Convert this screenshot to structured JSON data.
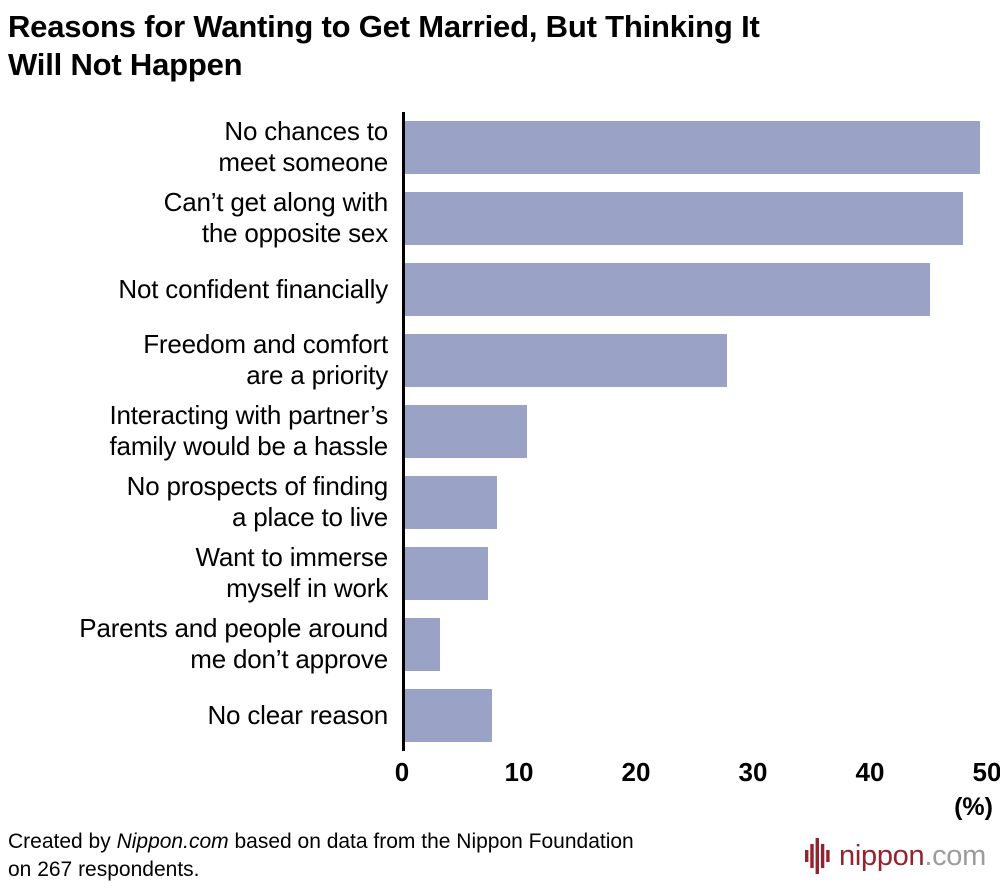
{
  "chart_data": {
    "type": "bar",
    "orientation": "horizontal",
    "title": "Reasons for Wanting to Get Married, But Thinking It Will Not Happen",
    "title_display": "Reasons for Wanting to Get Married, But Thinking It\nWill Not Happen",
    "categories": [
      "No chances to meet someone",
      "Can’t get along with the opposite sex",
      "Not confident financially",
      "Freedom and comfort are a priority",
      "Interacting with partner’s family would be a hassle",
      "No prospects of finding a place to live",
      "Want to immerse myself in work",
      "Parents and people around me don’t approve",
      "No clear reason"
    ],
    "categories_display": [
      "No chances to\nmeet someone",
      "Can’t get along with\nthe opposite sex",
      "Not confident financially",
      "Freedom and comfort\nare a priority",
      "Interacting with partner’s\nfamily would be a hassle",
      "No prospects of finding\na place to live",
      "Want to immerse\nmyself in work",
      "Parents and people around\nme don’t approve",
      "No clear reason"
    ],
    "values": [
      49.4,
      47.9,
      45.1,
      27.7,
      10.5,
      7.9,
      7.1,
      3.0,
      7.5
    ],
    "xlim": [
      0,
      50
    ],
    "xticks": [
      "0",
      "10",
      "20",
      "30",
      "40",
      "50"
    ],
    "x_unit_label": "(%)",
    "bar_color": "#9aa3c6",
    "axis_color": "#000000",
    "grid": false,
    "legend": "none"
  },
  "footer": {
    "attribution": {
      "prefix": "Created by ",
      "source_name": "Nippon.com",
      "suffix": " based on data from the Nippon Foundation\non 267 respondents."
    },
    "logo": {
      "icon": "waveform-bars-icon",
      "text_main": "nippon",
      "text_suffix": ".com",
      "color_main": "#93242f",
      "color_suffix": "#9c9c9c"
    }
  }
}
